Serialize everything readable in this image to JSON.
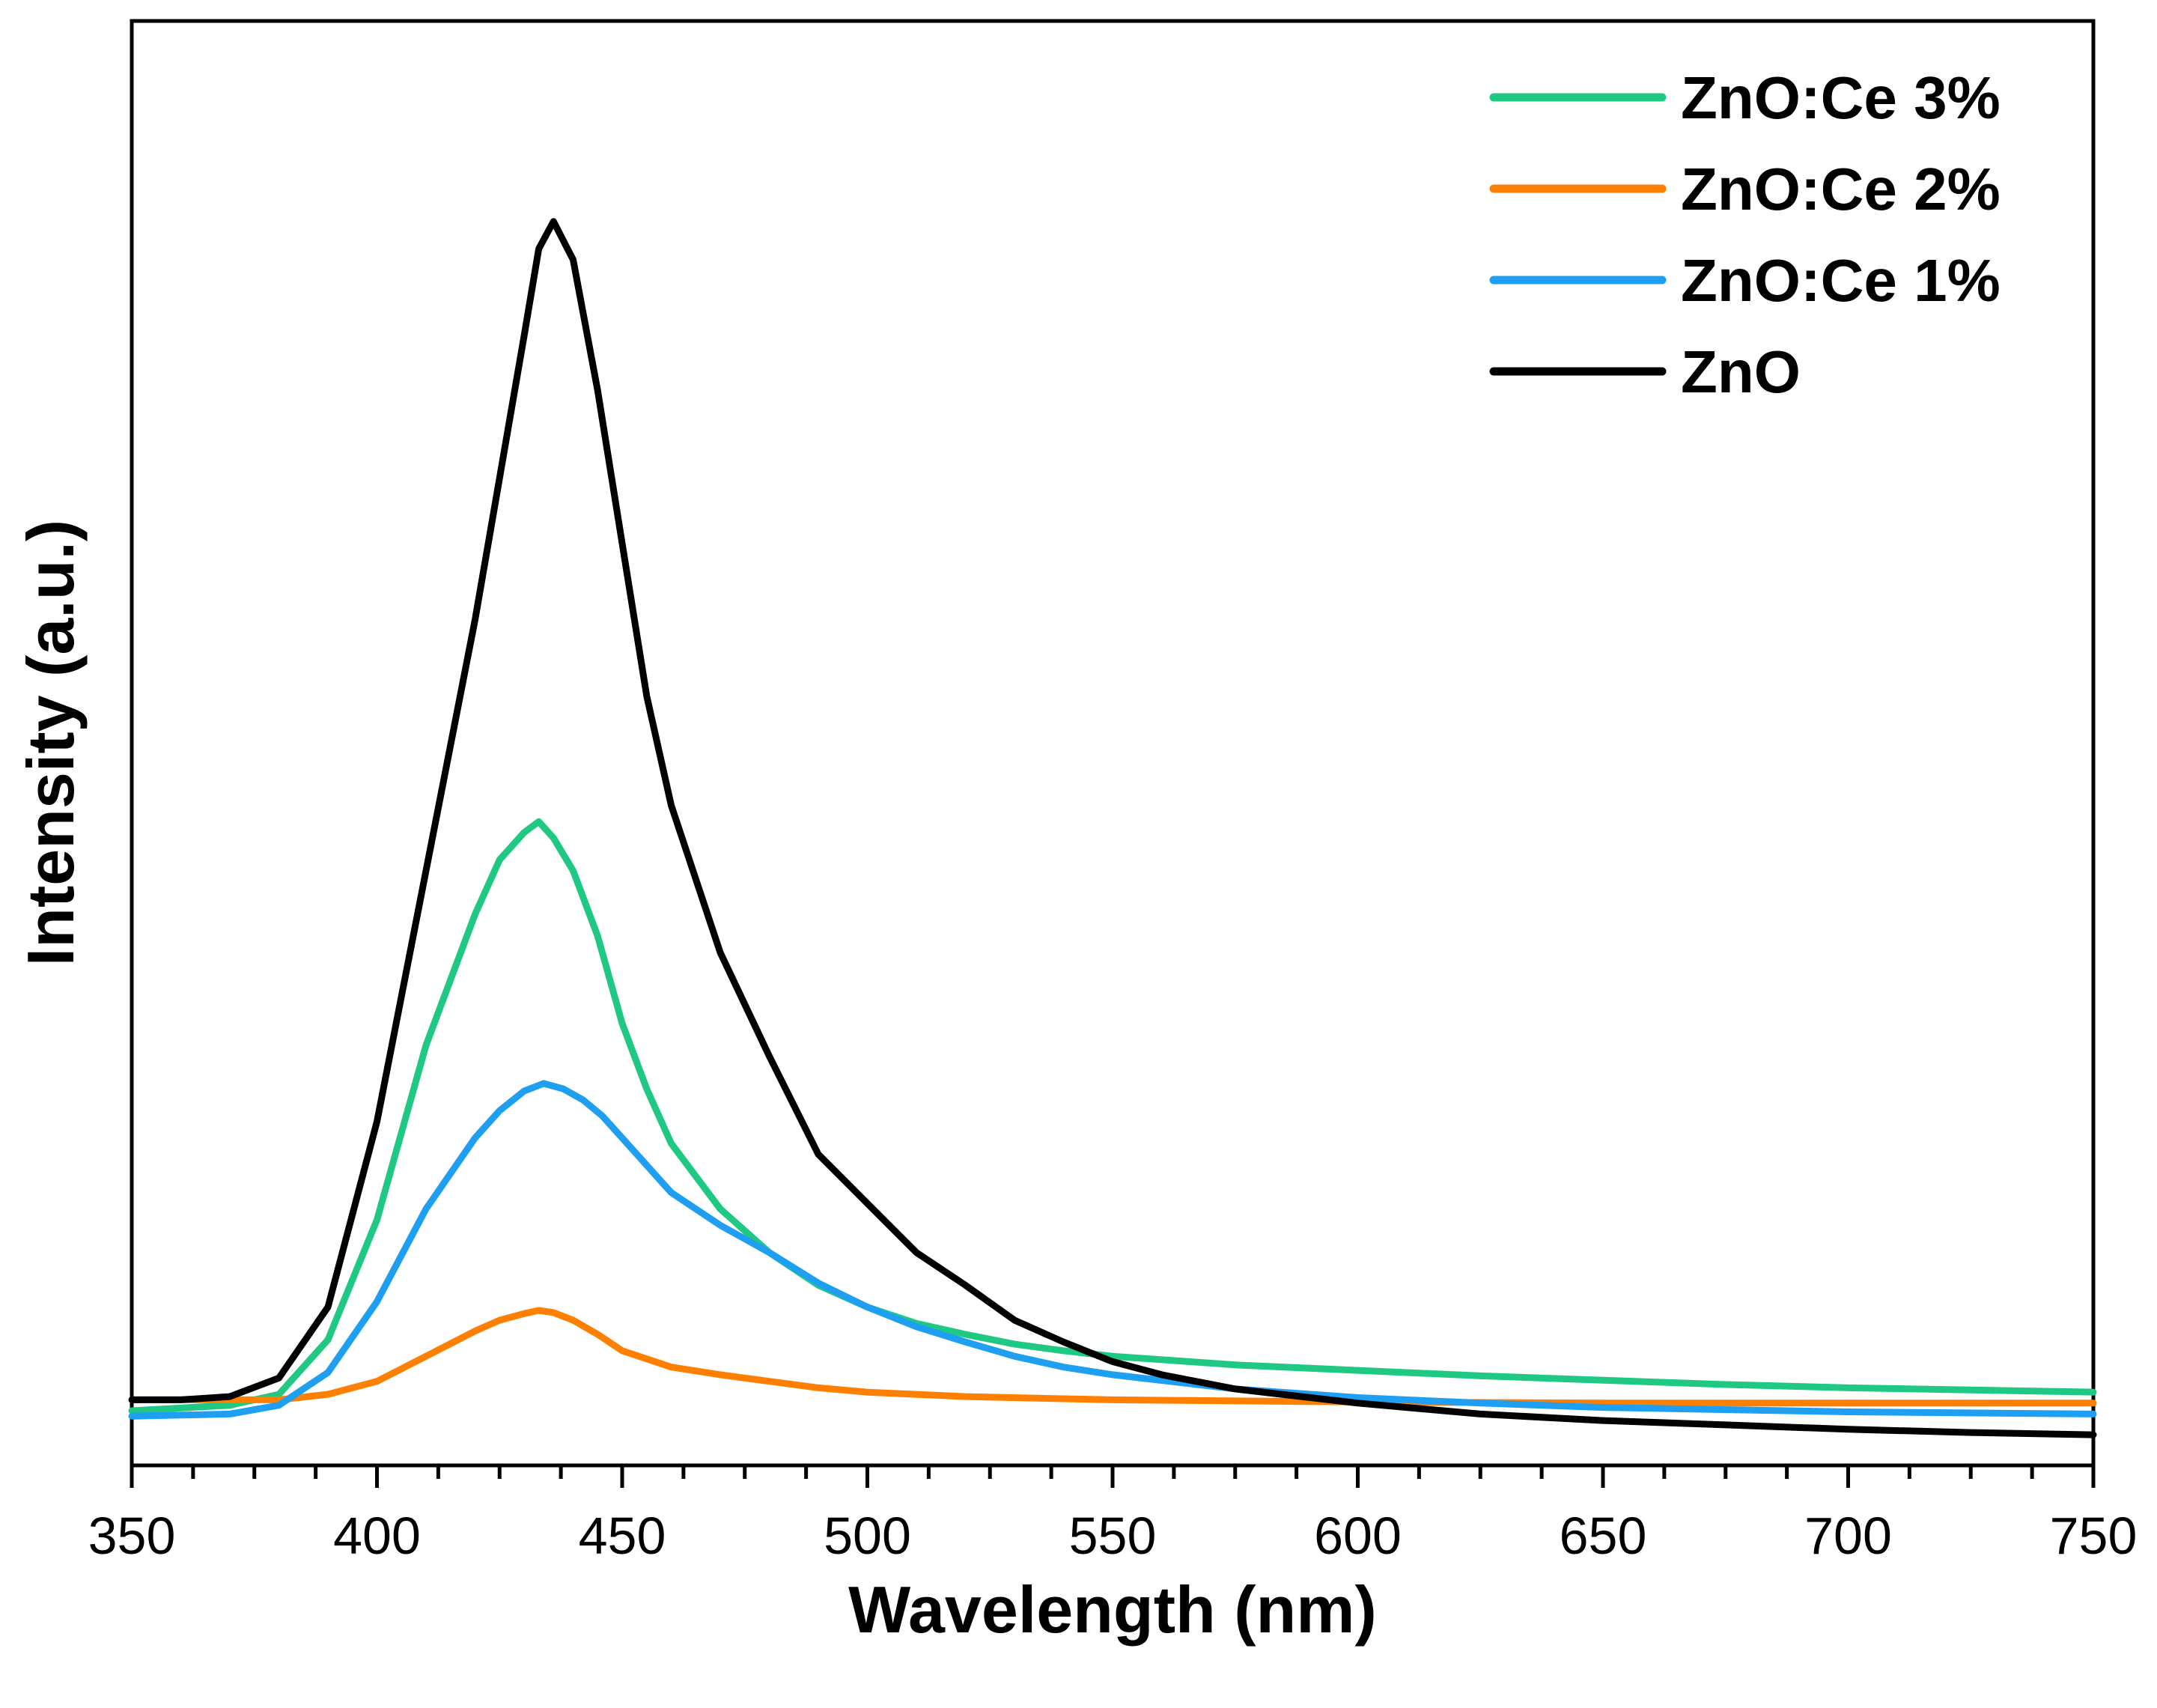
{
  "chart_data": {
    "type": "line",
    "title": "",
    "xlabel": "Wavelength (nm)",
    "ylabel": "Intensity (a.u.)",
    "xlim": [
      350,
      750
    ],
    "ylim": [
      -0.3,
      12.5
    ],
    "xticks": [
      "350",
      "400",
      "450",
      "500",
      "550",
      "600",
      "650",
      "700",
      "750"
    ],
    "yticks": [],
    "grid": false,
    "legend_position": "top-right",
    "series": [
      {
        "name": "ZnO:Ce 3%",
        "color": "#20C983",
        "x": [
          350,
          370,
          380,
          390,
          400,
          410,
          420,
          425,
          430,
          433,
          436,
          440,
          445,
          450,
          455,
          460,
          470,
          480,
          490,
          500,
          510,
          520,
          530,
          540,
          550,
          575,
          600,
          625,
          650,
          675,
          700,
          725,
          750
        ],
        "y": [
          0.05,
          0.1,
          0.2,
          0.7,
          1.8,
          3.4,
          4.6,
          5.1,
          5.35,
          5.45,
          5.3,
          5.0,
          4.4,
          3.6,
          3.0,
          2.5,
          1.9,
          1.5,
          1.2,
          1.0,
          0.85,
          0.75,
          0.66,
          0.6,
          0.55,
          0.47,
          0.42,
          0.37,
          0.33,
          0.29,
          0.26,
          0.24,
          0.22
        ]
      },
      {
        "name": "ZnO:Ce 2%",
        "color": "#FF8000",
        "x": [
          350,
          370,
          380,
          390,
          400,
          410,
          420,
          425,
          430,
          433,
          436,
          440,
          445,
          450,
          460,
          470,
          480,
          490,
          500,
          520,
          550,
          600,
          650,
          700,
          750
        ],
        "y": [
          0.15,
          0.15,
          0.15,
          0.2,
          0.32,
          0.55,
          0.78,
          0.88,
          0.94,
          0.97,
          0.95,
          0.88,
          0.75,
          0.6,
          0.45,
          0.38,
          0.32,
          0.26,
          0.22,
          0.18,
          0.15,
          0.13,
          0.12,
          0.12,
          0.12
        ]
      },
      {
        "name": "ZnO:Ce 1%",
        "color": "#1E9FF2",
        "x": [
          350,
          370,
          380,
          390,
          400,
          410,
          420,
          425,
          430,
          434,
          438,
          442,
          446,
          450,
          455,
          460,
          470,
          480,
          490,
          500,
          510,
          520,
          530,
          540,
          550,
          575,
          600,
          625,
          650,
          700,
          750
        ],
        "y": [
          0.0,
          0.02,
          0.1,
          0.4,
          1.05,
          1.9,
          2.55,
          2.8,
          2.98,
          3.05,
          3.0,
          2.9,
          2.75,
          2.55,
          2.3,
          2.05,
          1.75,
          1.5,
          1.22,
          1.0,
          0.82,
          0.68,
          0.55,
          0.45,
          0.38,
          0.25,
          0.17,
          0.12,
          0.08,
          0.04,
          0.02
        ]
      },
      {
        "name": "ZnO",
        "color": "#000000",
        "x": [
          350,
          360,
          370,
          380,
          390,
          400,
          410,
          420,
          425,
          430,
          433,
          436,
          440,
          445,
          450,
          455,
          460,
          470,
          480,
          490,
          500,
          510,
          520,
          530,
          540,
          550,
          560,
          575,
          600,
          625,
          650,
          675,
          700,
          725,
          750
        ],
        "y": [
          0.15,
          0.15,
          0.18,
          0.35,
          1.0,
          2.7,
          5.0,
          7.3,
          8.6,
          9.9,
          10.7,
          10.95,
          10.6,
          9.4,
          8.0,
          6.6,
          5.6,
          4.25,
          3.3,
          2.4,
          1.95,
          1.5,
          1.2,
          0.88,
          0.68,
          0.5,
          0.38,
          0.25,
          0.12,
          0.02,
          -0.04,
          -0.08,
          -0.12,
          -0.15,
          -0.17
        ]
      }
    ]
  }
}
